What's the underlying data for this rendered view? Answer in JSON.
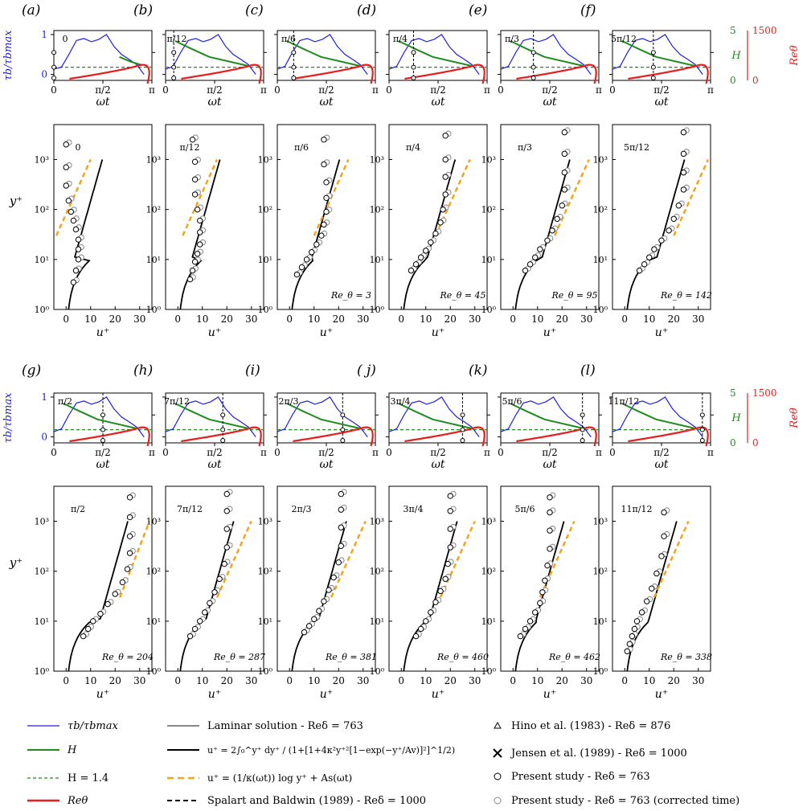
{
  "panels": [
    {
      "label": "(a)",
      "phase": "0",
      "re": "",
      "tau": [
        0.13,
        0.18,
        0.5,
        0.85,
        0.9,
        0.82,
        0.88,
        1.0,
        0.7,
        0.5,
        0.38,
        0.25,
        0.0
      ],
      "hcurve": [
        [
          2.1,
          2.5
        ],
        [
          2.45,
          2.0
        ],
        [
          2.8,
          1.65
        ]
      ],
      "cursor": 0.0
    },
    {
      "label": "(b)",
      "phase": "π/12",
      "re": "",
      "tau": [
        0.13,
        0.2,
        0.55,
        0.85,
        0.9,
        0.82,
        0.88,
        1.0,
        0.7,
        0.5,
        0.38,
        0.25,
        0.0
      ],
      "hcurve": [
        [
          0.3,
          4.2
        ],
        [
          0.8,
          3.4
        ],
        [
          1.4,
          2.5
        ],
        [
          2.7,
          1.5
        ]
      ],
      "cursor": 0.262
    },
    {
      "label": "(c)",
      "phase": "π/6",
      "re": "Re_θ = 3",
      "tau": [
        0.13,
        0.2,
        0.55,
        0.85,
        0.9,
        0.82,
        0.88,
        1.0,
        0.7,
        0.5,
        0.38,
        0.25,
        0.0
      ],
      "hcurve": [
        [
          0.3,
          4.2
        ],
        [
          0.8,
          3.4
        ],
        [
          1.4,
          2.5
        ],
        [
          2.7,
          1.5
        ]
      ],
      "cursor": 0.524
    },
    {
      "label": "(d)",
      "phase": "π/4",
      "re": "Re_θ = 45",
      "tau": [
        0.13,
        0.2,
        0.55,
        0.85,
        0.9,
        0.82,
        0.88,
        1.0,
        0.7,
        0.5,
        0.38,
        0.25,
        0.0
      ],
      "hcurve": [
        [
          0.3,
          4.2
        ],
        [
          0.8,
          3.4
        ],
        [
          1.4,
          2.5
        ],
        [
          2.7,
          1.5
        ]
      ],
      "cursor": 0.785
    },
    {
      "label": "(e)",
      "phase": "π/3",
      "re": "Re_θ = 95",
      "tau": [
        0.13,
        0.2,
        0.55,
        0.85,
        0.9,
        0.82,
        0.88,
        1.0,
        0.7,
        0.5,
        0.38,
        0.25,
        0.0
      ],
      "hcurve": [
        [
          0.3,
          4.2
        ],
        [
          0.8,
          3.4
        ],
        [
          1.4,
          2.5
        ],
        [
          2.7,
          1.5
        ]
      ],
      "cursor": 1.047
    },
    {
      "label": "(f)",
      "phase": "5π/12",
      "re": "Re_θ = 142",
      "tau": [
        0.13,
        0.2,
        0.55,
        0.85,
        0.9,
        0.82,
        0.88,
        1.0,
        0.7,
        0.5,
        0.38,
        0.25,
        0.0
      ],
      "hcurve": [
        [
          0.3,
          4.2
        ],
        [
          0.8,
          3.4
        ],
        [
          1.4,
          2.5
        ],
        [
          2.7,
          1.5
        ]
      ],
      "cursor": 1.309
    },
    {
      "label": "(g)",
      "phase": "π/2",
      "re": "Re_θ = 204",
      "tau": [
        0.13,
        0.2,
        0.55,
        0.85,
        0.9,
        0.82,
        0.88,
        1.0,
        0.7,
        0.5,
        0.38,
        0.25,
        0.0
      ],
      "hcurve": [
        [
          0.3,
          4.2
        ],
        [
          0.8,
          3.4
        ],
        [
          1.4,
          2.5
        ],
        [
          2.7,
          1.5
        ]
      ],
      "cursor": 1.571
    },
    {
      "label": "(h)",
      "phase": "7π/12",
      "re": "Re_θ = 287",
      "tau": [
        0.13,
        0.2,
        0.55,
        0.85,
        0.9,
        0.82,
        0.88,
        1.0,
        0.7,
        0.5,
        0.38,
        0.25,
        0.0
      ],
      "hcurve": [
        [
          0.3,
          4.2
        ],
        [
          0.8,
          3.4
        ],
        [
          1.4,
          2.5
        ],
        [
          2.7,
          1.5
        ]
      ],
      "cursor": 1.833
    },
    {
      "label": "(i)",
      "phase": "2π/3",
      "re": "Re_θ = 381",
      "tau": [
        0.13,
        0.2,
        0.55,
        0.85,
        0.9,
        0.82,
        0.88,
        1.0,
        0.7,
        0.5,
        0.38,
        0.25,
        0.0
      ],
      "hcurve": [
        [
          0.3,
          4.2
        ],
        [
          0.8,
          3.4
        ],
        [
          1.4,
          2.5
        ],
        [
          2.7,
          1.5
        ]
      ],
      "cursor": 2.094
    },
    {
      "label": "( j)",
      "phase": "3π/4",
      "re": "Re_θ = 460",
      "tau": [
        0.13,
        0.2,
        0.55,
        0.85,
        0.9,
        0.82,
        0.88,
        1.0,
        0.7,
        0.5,
        0.38,
        0.25,
        0.0
      ],
      "hcurve": [
        [
          0.3,
          4.2
        ],
        [
          0.8,
          3.4
        ],
        [
          1.4,
          2.5
        ],
        [
          2.7,
          1.5
        ]
      ],
      "cursor": 2.356
    },
    {
      "label": "(k)",
      "phase": "5π/6",
      "re": "Re_θ = 462",
      "tau": [
        0.13,
        0.2,
        0.55,
        0.85,
        0.9,
        0.82,
        0.88,
        1.0,
        0.7,
        0.5,
        0.38,
        0.25,
        0.0
      ],
      "hcurve": [
        [
          0.3,
          4.2
        ],
        [
          0.8,
          3.4
        ],
        [
          1.4,
          2.5
        ],
        [
          2.7,
          1.5
        ]
      ],
      "cursor": 2.618
    },
    {
      "label": "(l)",
      "phase": "11π/12",
      "re": "Re_θ = 338",
      "tau": [
        0.13,
        0.2,
        0.55,
        0.85,
        0.9,
        0.82,
        0.88,
        1.0,
        0.7,
        0.5,
        0.38,
        0.25,
        0.0
      ],
      "hcurve": [
        [
          0.3,
          4.2
        ],
        [
          0.8,
          3.4
        ],
        [
          1.4,
          2.5
        ],
        [
          2.7,
          1.5
        ]
      ],
      "cursor": 2.88
    }
  ],
  "axes": {
    "top_xticks": [
      "0",
      "π/2",
      "π"
    ],
    "top_xlabel": "ωt",
    "top_yticks": [
      "0",
      "1"
    ],
    "top_ylabel": "τb/τbmax",
    "h_ticks": [
      "0",
      "5"
    ],
    "h_label": "H",
    "re_ticks": [
      "0",
      "1500"
    ],
    "re_label": "Reθ",
    "bottom_xticks": [
      "0",
      "10",
      "20",
      "30"
    ],
    "bottom_xlabel": "u⁺",
    "bottom_yticks": [
      "10⁰",
      "10¹",
      "10²",
      "10³"
    ],
    "bottom_ylabel": "y⁺"
  },
  "legend": {
    "tau": "τb/τbmax",
    "h": "H",
    "h14": "H = 1.4",
    "re": "Reθ",
    "laminar": "Laminar solution - Reδ = 763",
    "vandriest": "u⁺ = 2∫₀^y⁺ dy⁺ / (1+[1+4κ²y⁺²[1−exp(−y⁺/Av)]²]^1/2)",
    "loglaw": "u⁺ = (1/κ(ωt)) log y⁺ + As(ωt)",
    "spalart": "Spalart and Baldwin (1989) - Reδ = 1000",
    "hino": "Hino et al. (1983) - Reδ = 876",
    "jensen": "Jensen et al. (1989) - Reδ = 1000",
    "present": "Present study - Reδ = 763",
    "present_corr": "Present study - Reδ = 763 (corrected time)"
  },
  "colors": {
    "tau": "#1f1fe6",
    "h": "#1e8c1e",
    "re": "#e61e1e",
    "laminar": "#888888",
    "loglaw": "#f5a31a",
    "black": "#000000"
  },
  "chart_data": {
    "type": "line",
    "xlim_top": [
      0,
      3.1416
    ],
    "xlim_bottom": [
      -5,
      35
    ],
    "ylim_bottom_log": [
      1,
      5000
    ],
    "h_level": 1.4,
    "profiles_present": [
      {
        "phase": "0",
        "u": [
          3,
          4,
          5,
          5,
          5,
          4,
          3,
          2,
          1,
          0,
          0,
          0
        ],
        "y": [
          3.5,
          6,
          10,
          16,
          25,
          40,
          60,
          90,
          150,
          300,
          700,
          2000
        ]
      },
      {
        "phase": "π/12",
        "u": [
          5,
          6,
          7,
          8,
          9,
          9,
          9,
          8,
          7,
          7,
          7,
          6
        ],
        "y": [
          4,
          6,
          9,
          13,
          20,
          35,
          60,
          100,
          200,
          400,
          900,
          2500
        ]
      },
      {
        "phase": "π/6",
        "u": [
          3,
          5,
          7,
          9,
          11,
          13,
          14,
          15,
          15,
          15,
          14,
          14
        ],
        "y": [
          5,
          7,
          10,
          14,
          20,
          30,
          50,
          90,
          170,
          350,
          800,
          2500
        ]
      },
      {
        "phase": "π/4",
        "u": [
          4,
          6,
          8,
          10,
          12,
          14,
          16,
          17,
          18,
          18,
          18,
          18
        ],
        "y": [
          6,
          8,
          11,
          15,
          22,
          33,
          55,
          100,
          200,
          450,
          1000,
          3000
        ]
      },
      {
        "phase": "π/3",
        "u": [
          5,
          7,
          9,
          11,
          14,
          16,
          18,
          20,
          21,
          21,
          21,
          21
        ],
        "y": [
          6,
          8,
          11,
          16,
          24,
          38,
          65,
          120,
          250,
          550,
          1300,
          3500
        ]
      },
      {
        "phase": "5π/12",
        "u": [
          6,
          8,
          10,
          12,
          15,
          18,
          20,
          22,
          24,
          24,
          24,
          24
        ],
        "y": [
          6,
          8,
          11,
          16,
          24,
          38,
          65,
          120,
          250,
          550,
          1300,
          3500
        ]
      },
      {
        "phase": "π/2",
        "u": [
          7,
          9,
          11,
          14,
          17,
          20,
          23,
          25,
          26,
          26,
          26,
          26
        ],
        "y": [
          5,
          7,
          10,
          14,
          22,
          35,
          60,
          110,
          230,
          500,
          1200,
          3000
        ]
      },
      {
        "phase": "7π/12",
        "u": [
          5,
          7,
          9,
          11,
          13,
          15,
          17,
          19,
          20,
          20,
          20,
          20
        ],
        "y": [
          5,
          7,
          10,
          15,
          23,
          38,
          70,
          140,
          300,
          700,
          1600,
          3500
        ]
      },
      {
        "phase": "2π/3",
        "u": [
          6,
          8,
          10,
          12,
          14,
          16,
          18,
          20,
          21,
          21,
          21,
          21
        ],
        "y": [
          6,
          8,
          11,
          16,
          25,
          42,
          75,
          150,
          320,
          750,
          1700,
          3500
        ]
      },
      {
        "phase": "3π/4",
        "u": [
          6,
          8,
          10,
          12,
          14,
          16,
          18,
          19,
          20,
          20,
          20,
          20
        ],
        "y": [
          5,
          7,
          10,
          15,
          24,
          40,
          70,
          140,
          300,
          700,
          1600,
          3200
        ]
      },
      {
        "phase": "5π/6",
        "u": [
          3,
          5,
          7,
          9,
          11,
          12,
          13,
          14,
          15,
          15,
          15,
          15
        ],
        "y": [
          5,
          7,
          10,
          15,
          23,
          38,
          65,
          130,
          280,
          650,
          1500,
          3000
        ]
      },
      {
        "phase": "11π/12",
        "u": [
          1,
          2,
          3,
          4,
          5,
          7,
          9,
          11,
          13,
          15,
          16,
          16
        ],
        "y": [
          2.5,
          3.5,
          5,
          7,
          10,
          15,
          25,
          45,
          90,
          200,
          500,
          1500
        ]
      }
    ],
    "re_theta": [
      null,
      null,
      3,
      45,
      95,
      142,
      204,
      287,
      381,
      460,
      462,
      338
    ]
  }
}
